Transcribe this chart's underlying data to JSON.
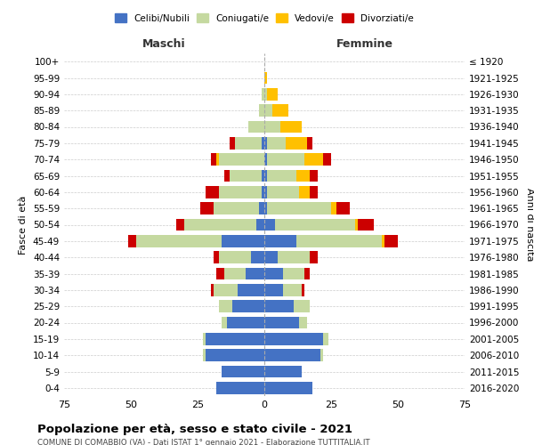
{
  "age_groups": [
    "0-4",
    "5-9",
    "10-14",
    "15-19",
    "20-24",
    "25-29",
    "30-34",
    "35-39",
    "40-44",
    "45-49",
    "50-54",
    "55-59",
    "60-64",
    "65-69",
    "70-74",
    "75-79",
    "80-84",
    "85-89",
    "90-94",
    "95-99",
    "100+"
  ],
  "birth_years": [
    "2016-2020",
    "2011-2015",
    "2006-2010",
    "2001-2005",
    "1996-2000",
    "1991-1995",
    "1986-1990",
    "1981-1985",
    "1976-1980",
    "1971-1975",
    "1966-1970",
    "1961-1965",
    "1956-1960",
    "1951-1955",
    "1946-1950",
    "1941-1945",
    "1936-1940",
    "1931-1935",
    "1926-1930",
    "1921-1925",
    "≤ 1920"
  ],
  "male": {
    "celibi": [
      18,
      16,
      22,
      22,
      14,
      12,
      10,
      7,
      5,
      16,
      3,
      2,
      1,
      1,
      0,
      1,
      0,
      0,
      0,
      0,
      0
    ],
    "coniugati": [
      0,
      0,
      1,
      1,
      2,
      5,
      9,
      8,
      12,
      32,
      27,
      17,
      16,
      12,
      17,
      10,
      6,
      2,
      1,
      0,
      0
    ],
    "vedovi": [
      0,
      0,
      0,
      0,
      0,
      0,
      0,
      0,
      0,
      0,
      0,
      0,
      0,
      0,
      1,
      0,
      0,
      0,
      0,
      0,
      0
    ],
    "divorziati": [
      0,
      0,
      0,
      0,
      0,
      0,
      1,
      3,
      2,
      3,
      3,
      5,
      5,
      2,
      2,
      2,
      0,
      0,
      0,
      0,
      0
    ]
  },
  "female": {
    "nubili": [
      18,
      14,
      21,
      22,
      13,
      11,
      7,
      7,
      5,
      12,
      4,
      1,
      1,
      1,
      1,
      1,
      0,
      0,
      0,
      0,
      0
    ],
    "coniugate": [
      0,
      0,
      1,
      2,
      3,
      6,
      7,
      8,
      12,
      32,
      30,
      24,
      12,
      11,
      14,
      7,
      6,
      3,
      1,
      0,
      0
    ],
    "vedove": [
      0,
      0,
      0,
      0,
      0,
      0,
      0,
      0,
      0,
      1,
      1,
      2,
      4,
      5,
      7,
      8,
      8,
      6,
      4,
      1,
      0
    ],
    "divorziate": [
      0,
      0,
      0,
      0,
      0,
      0,
      1,
      2,
      3,
      5,
      6,
      5,
      3,
      3,
      3,
      2,
      0,
      0,
      0,
      0,
      0
    ]
  },
  "colors": {
    "celibi": "#4472c4",
    "coniugati": "#c5d9a0",
    "vedovi": "#ffc000",
    "divorziati": "#cc0000"
  },
  "title": "Popolazione per età, sesso e stato civile - 2021",
  "subtitle": "COMUNE DI COMABBIO (VA) - Dati ISTAT 1° gennaio 2021 - Elaborazione TUTTITALIA.IT",
  "xlabel_left": "Maschi",
  "xlabel_right": "Femmine",
  "ylabel_left": "Fasce di età",
  "ylabel_right": "Anni di nascita",
  "xlim": 75,
  "legend_labels": [
    "Celibi/Nubili",
    "Coniugati/e",
    "Vedovi/e",
    "Divorziati/e"
  ],
  "background_color": "#ffffff",
  "bar_height": 0.75,
  "grid_color": "#cccccc",
  "maschi_color": "#333333",
  "femmine_color": "#333333"
}
